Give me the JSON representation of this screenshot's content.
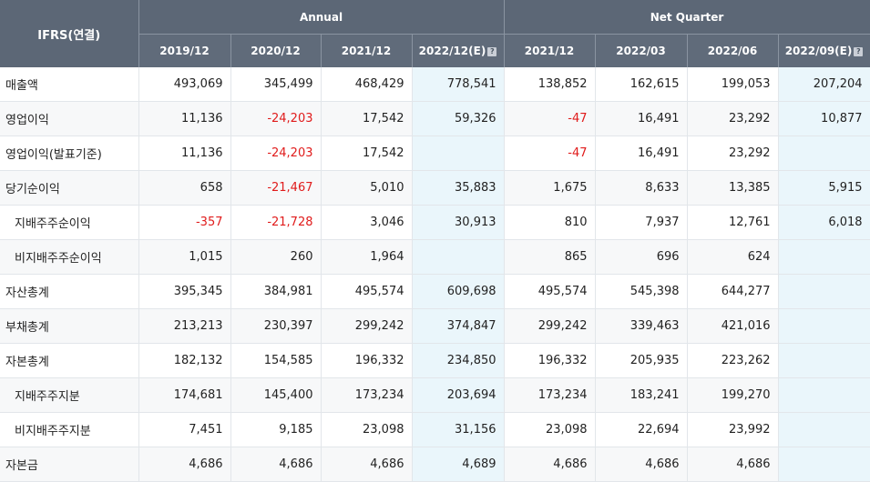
{
  "header": {
    "ifrs_label": "IFRS(연결)",
    "annual_label": "Annual",
    "quarter_label": "Net Quarter",
    "annual_periods": [
      "2019/12",
      "2020/12",
      "2021/12",
      "2022/12(E)"
    ],
    "quarter_periods": [
      "2021/12",
      "2022/03",
      "2022/06",
      "2022/09(E)"
    ],
    "estimate_icon": "help-icon"
  },
  "colors": {
    "header_bg": "#5c6776",
    "negative": "#e01b1b",
    "estimate_bg": "#eaf6fb"
  },
  "rows": [
    {
      "label": "매출액",
      "values": [
        "493,069",
        "345,499",
        "468,429",
        "778,541",
        "138,852",
        "162,615",
        "199,053",
        "207,204"
      ]
    },
    {
      "label": "영업이익",
      "values": [
        "11,136",
        "-24,203",
        "17,542",
        "59,326",
        "-47",
        "16,491",
        "23,292",
        "10,877"
      ]
    },
    {
      "label": "영업이익(발표기준)",
      "values": [
        "11,136",
        "-24,203",
        "17,542",
        "",
        "-47",
        "16,491",
        "23,292",
        ""
      ]
    },
    {
      "label": "당기순이익",
      "values": [
        "658",
        "-21,467",
        "5,010",
        "35,883",
        "1,675",
        "8,633",
        "13,385",
        "5,915"
      ]
    },
    {
      "label": "지배주주순이익",
      "values": [
        "-357",
        "-21,728",
        "3,046",
        "30,913",
        "810",
        "7,937",
        "12,761",
        "6,018"
      ]
    },
    {
      "label": "비지배주주순이익",
      "values": [
        "1,015",
        "260",
        "1,964",
        "",
        "865",
        "696",
        "624",
        ""
      ]
    },
    {
      "label": "자산총계",
      "values": [
        "395,345",
        "384,981",
        "495,574",
        "609,698",
        "495,574",
        "545,398",
        "644,277",
        ""
      ]
    },
    {
      "label": "부채총계",
      "values": [
        "213,213",
        "230,397",
        "299,242",
        "374,847",
        "299,242",
        "339,463",
        "421,016",
        ""
      ]
    },
    {
      "label": "자본총계",
      "values": [
        "182,132",
        "154,585",
        "196,332",
        "234,850",
        "196,332",
        "205,935",
        "223,262",
        ""
      ]
    },
    {
      "label": "지배주주지분",
      "values": [
        "174,681",
        "145,400",
        "173,234",
        "203,694",
        "173,234",
        "183,241",
        "199,270",
        ""
      ]
    },
    {
      "label": "비지배주주지분",
      "values": [
        "7,451",
        "9,185",
        "23,098",
        "31,156",
        "23,098",
        "22,694",
        "23,992",
        ""
      ]
    },
    {
      "label": "자본금",
      "values": [
        "4,686",
        "4,686",
        "4,686",
        "4,689",
        "4,686",
        "4,686",
        "4,686",
        ""
      ]
    }
  ]
}
